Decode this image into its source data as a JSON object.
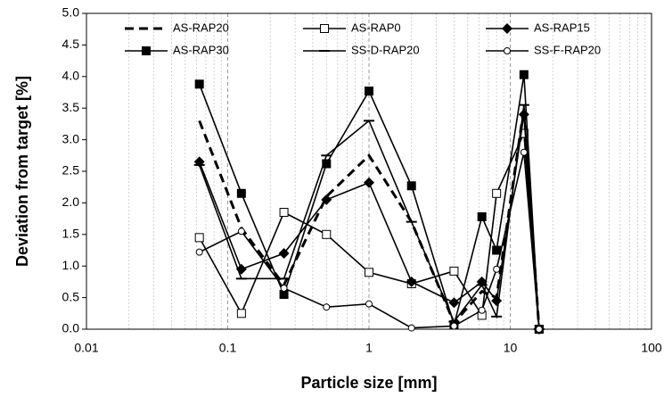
{
  "chart_data": {
    "type": "line",
    "x_label": "Particle size [mm]",
    "y_label": "Deviation from target [%]",
    "x": [
      0.063,
      0.125,
      0.25,
      0.5,
      1,
      2,
      4,
      6.3,
      8,
      12.5,
      16
    ],
    "xlim": [
      0.01,
      100
    ],
    "xticks": [
      0.01,
      0.1,
      1,
      10,
      100
    ],
    "x_log": true,
    "ylim": [
      0,
      5
    ],
    "yticks": [
      {
        "value": 0,
        "label": "0.0"
      },
      {
        "value": 0.5,
        "label": "0.5"
      },
      {
        "value": 1,
        "label": "1.0"
      },
      {
        "value": 1.5,
        "label": "1.5"
      },
      {
        "value": 2,
        "label": "2.0"
      },
      {
        "value": 2.5,
        "label": "2.5"
      },
      {
        "value": 3,
        "label": "3.0"
      },
      {
        "value": 3.5,
        "label": "3.5"
      },
      {
        "value": 4,
        "label": "4.0"
      },
      {
        "value": 4.5,
        "label": "4.5"
      },
      {
        "value": 5,
        "label": "5.0"
      }
    ],
    "grid": true,
    "minor_grid": true,
    "legend": "top",
    "series": [
      {
        "name": "AS-RAP20",
        "color": "#000000",
        "marker": "none",
        "dashed": true,
        "values": [
          3.3,
          1.6,
          0.7,
          2.1,
          2.75,
          1.7,
          0.1,
          0.6,
          0.5,
          3.5,
          0
        ]
      },
      {
        "name": "AS-RAP0",
        "color": "#000000",
        "marker": "square-open",
        "dashed": false,
        "values": [
          1.45,
          0.25,
          1.85,
          1.5,
          0.9,
          0.72,
          0.92,
          0.22,
          2.15,
          3.1,
          0
        ]
      },
      {
        "name": "AS-RAP15",
        "color": "#000000",
        "marker": "diamond",
        "dashed": false,
        "values": [
          2.65,
          0.95,
          1.2,
          2.05,
          2.32,
          0.75,
          0.42,
          0.75,
          0.45,
          3.4,
          0
        ]
      },
      {
        "name": "AS-RAP30",
        "color": "#000000",
        "marker": "square",
        "dashed": false,
        "values": [
          3.88,
          2.15,
          0.55,
          2.62,
          3.77,
          2.27,
          0.07,
          1.78,
          1.25,
          4.03,
          0
        ]
      },
      {
        "name": "SS-D-RAP20",
        "color": "#000000",
        "marker": "dash",
        "dashed": false,
        "values": [
          2.6,
          0.8,
          0.8,
          2.75,
          3.3,
          1.7,
          0.12,
          0.7,
          0.2,
          3.55,
          0
        ]
      },
      {
        "name": "SS-F-RAP20",
        "color": "#000000",
        "marker": "circle-open",
        "dashed": false,
        "values": [
          1.22,
          1.55,
          0.65,
          0.35,
          0.4,
          0.02,
          0.05,
          0.3,
          0.95,
          2.8,
          0
        ]
      }
    ]
  }
}
